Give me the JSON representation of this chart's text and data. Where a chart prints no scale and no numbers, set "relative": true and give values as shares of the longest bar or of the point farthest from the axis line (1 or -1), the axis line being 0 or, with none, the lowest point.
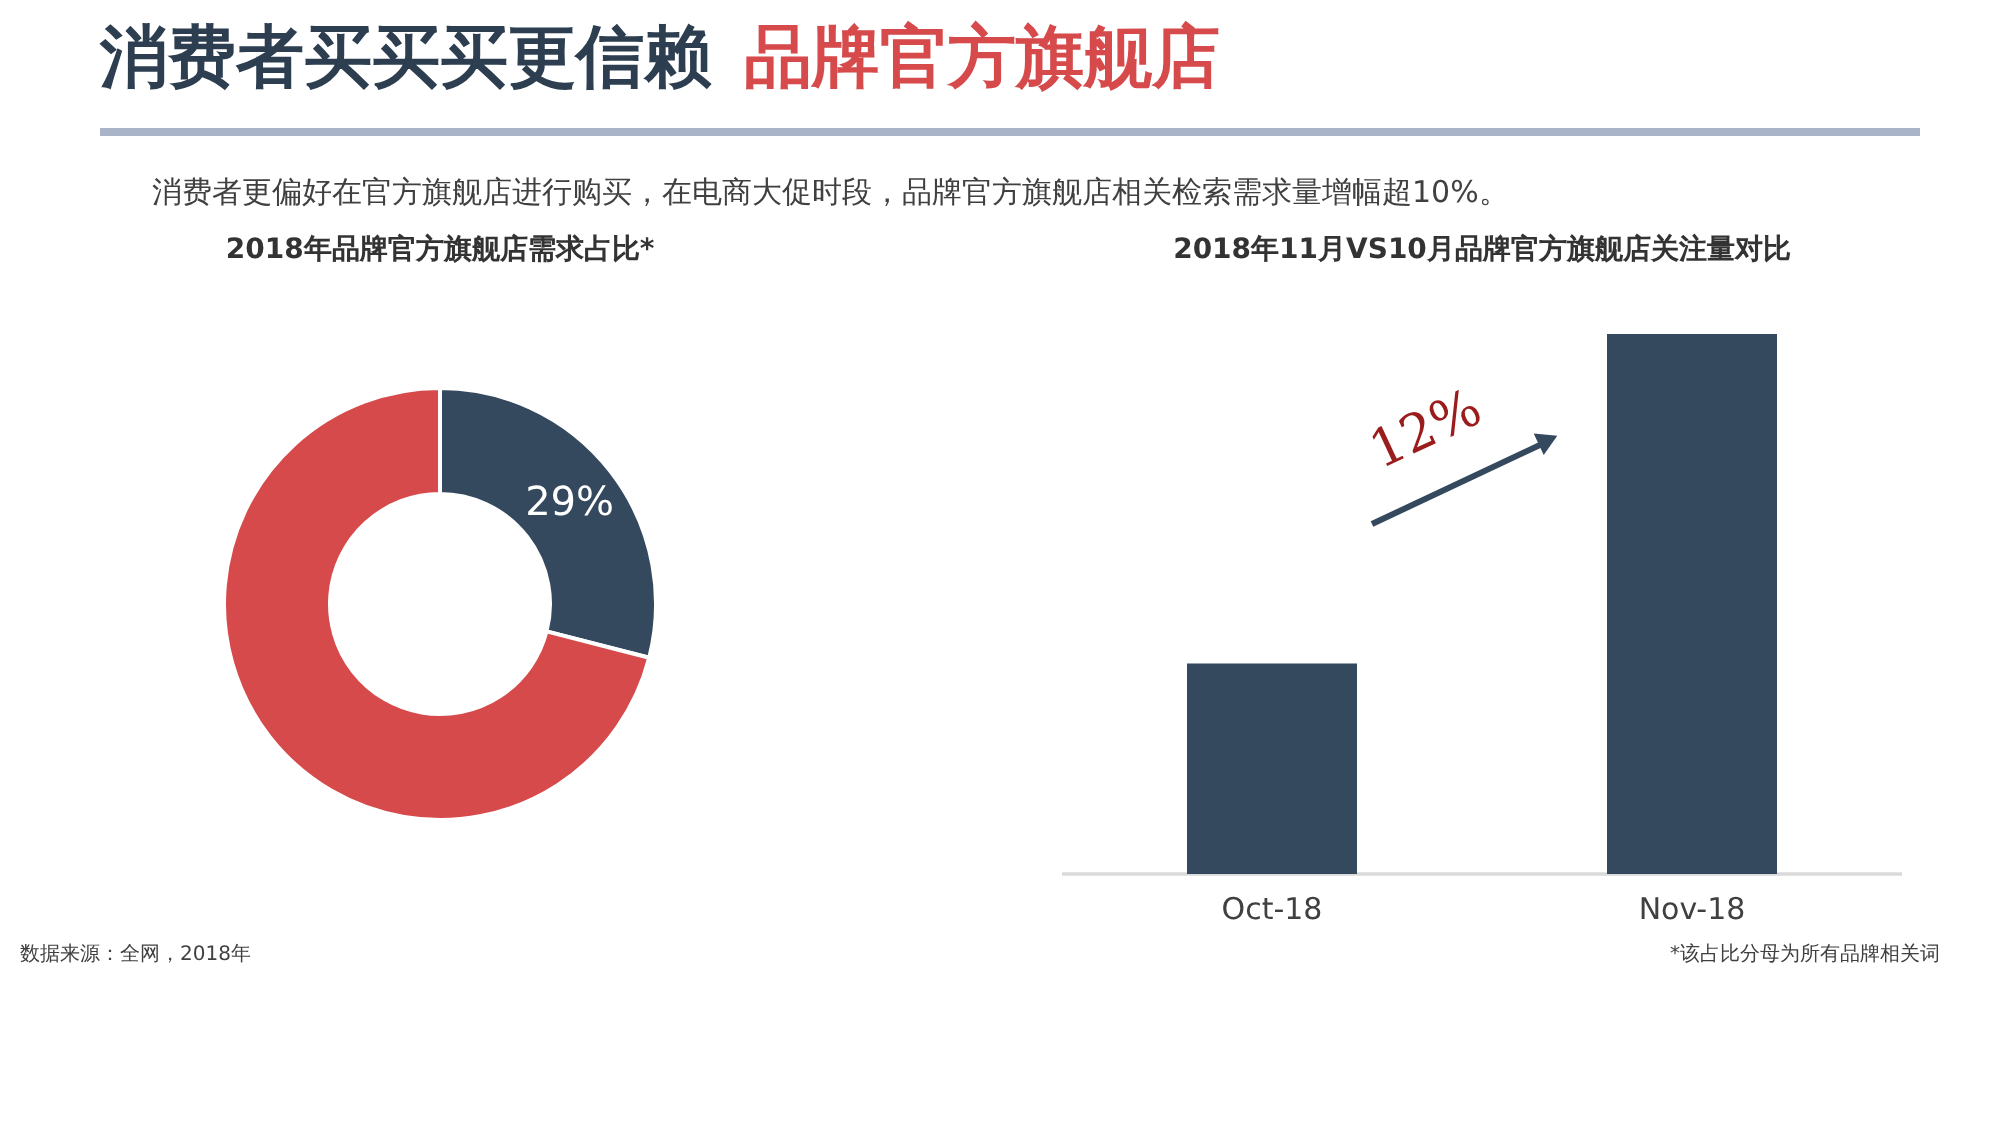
{
  "chart_data": [
    {
      "type": "other",
      "title": "消费者买买买更信赖 品牌官方旗舰店",
      "subtitle": "消费者更偏好在官方旗舰店进行购买，在电商大促时段，品牌官方旗舰店相关检索需求量增幅超10%。",
      "annotations": [
        "数据来源：全网，2018年",
        "*该占比分母为所有品牌相关词"
      ]
    },
    {
      "type": "donut",
      "title": "2018年品牌官方旗舰店需求占比*",
      "categories": [
        null,
        null
      ],
      "values": [
        29,
        71
      ],
      "colors": [
        "#34495e",
        "#d64a4b"
      ],
      "value_labels": [
        "29%",
        null
      ]
    },
    {
      "type": "bar",
      "title": "2018年11月VS10月品牌官方旗舰店关注量对比",
      "categories": [
        "Oct-18",
        "Nov-18"
      ],
      "values": [
        0.39,
        1
      ],
      "relative": true,
      "color": "#34495e",
      "annotations": [
        "12%"
      ]
    }
  ]
}
